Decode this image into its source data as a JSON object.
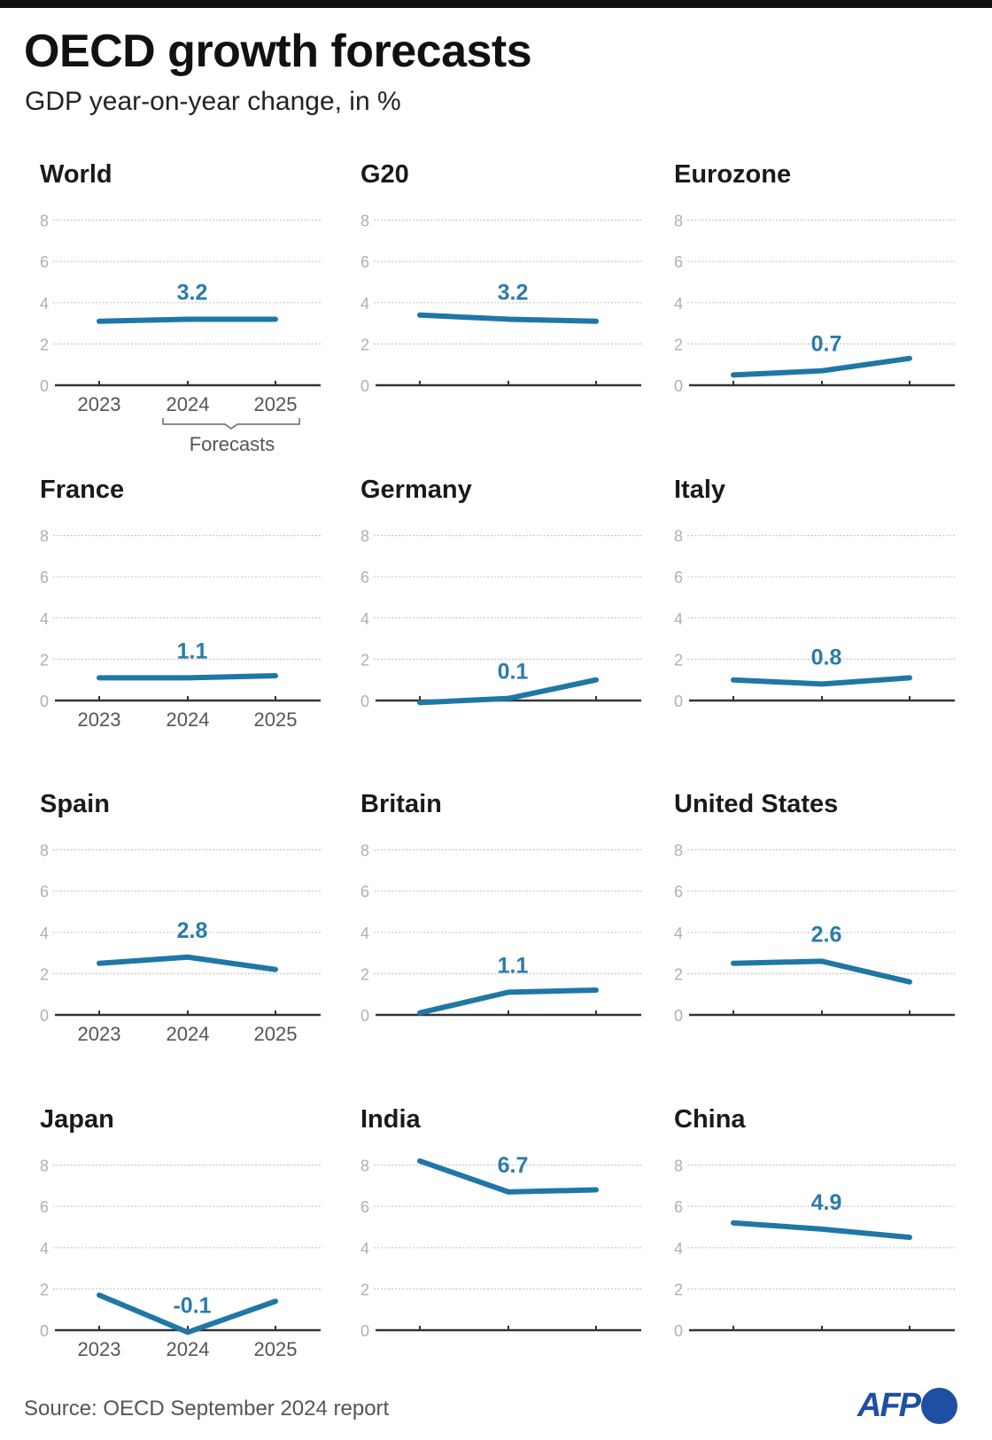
{
  "header": {
    "title": "OECD growth forecasts",
    "subtitle": "GDP year-on-year change, in %"
  },
  "footer": {
    "source": "Source: OECD September 2024 report",
    "logo": "AFP"
  },
  "colors": {
    "line": "#1f77a6",
    "label": "#2b7bab",
    "axis": "#333333",
    "grid": "#c8c8c8",
    "logo": "#1f4fa3"
  },
  "chart_data": {
    "type": "line",
    "x": [
      "2023",
      "2024",
      "2025"
    ],
    "yticks": [
      0,
      2,
      4,
      6,
      8
    ],
    "ylim": [
      0,
      8
    ],
    "grid": true,
    "forecast_note": "Forecasts",
    "forecast_years": [
      "2024",
      "2025"
    ],
    "panels": [
      {
        "title": "World",
        "values": [
          3.1,
          3.2,
          3.2
        ],
        "label": "3.2"
      },
      {
        "title": "G20",
        "values": [
          3.4,
          3.2,
          3.1
        ],
        "label": "3.2"
      },
      {
        "title": "Eurozone",
        "values": [
          0.5,
          0.7,
          1.3
        ],
        "label": "0.7"
      },
      {
        "title": "France",
        "values": [
          1.1,
          1.1,
          1.2
        ],
        "label": "1.1"
      },
      {
        "title": "Germany",
        "values": [
          -0.1,
          0.1,
          1.0
        ],
        "label": "0.1"
      },
      {
        "title": "Italy",
        "values": [
          1.0,
          0.8,
          1.1
        ],
        "label": "0.8"
      },
      {
        "title": "Spain",
        "values": [
          2.5,
          2.8,
          2.2
        ],
        "label": "2.8"
      },
      {
        "title": "Britain",
        "values": [
          0.1,
          1.1,
          1.2
        ],
        "label": "1.1"
      },
      {
        "title": "United States",
        "values": [
          2.5,
          2.6,
          1.6
        ],
        "label": "2.6"
      },
      {
        "title": "Japan",
        "values": [
          1.7,
          -0.1,
          1.4
        ],
        "label": "-0.1"
      },
      {
        "title": "India",
        "values": [
          8.2,
          6.7,
          6.8
        ],
        "label": "6.7"
      },
      {
        "title": "China",
        "values": [
          5.2,
          4.9,
          4.5
        ],
        "label": "4.9"
      }
    ]
  }
}
